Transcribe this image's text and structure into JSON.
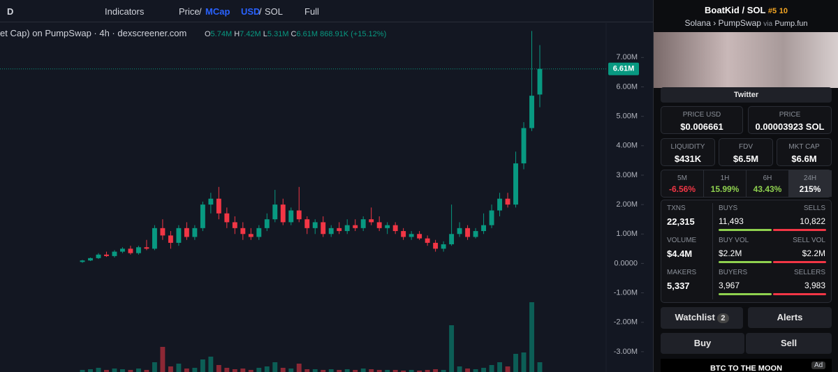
{
  "toolbar": {
    "interval": "D",
    "indicators": "Indicators",
    "price": "Price",
    "slash": "/",
    "mcap": "MCap",
    "usd": "USD",
    "sol": "SOL",
    "full": "Full"
  },
  "legend": {
    "title": "et Cap) on PumpSwap · 4h · dexscreener.com",
    "o": "O",
    "o_value": "5.74M",
    "h": "H",
    "h_value": "7.42M",
    "l": "L",
    "l_value": "5.31M",
    "c": "C",
    "c_value": "6.61M",
    "change": "868.91K (+15.12%)"
  },
  "chart": {
    "ylim": [
      -3.69,
      8.17
    ],
    "yticks": [
      {
        "value": 7,
        "label": "7.00M"
      },
      {
        "value": 6,
        "label": "6.00M"
      },
      {
        "value": 5,
        "label": "5.00M"
      },
      {
        "value": 4,
        "label": "4.00M"
      },
      {
        "value": 3,
        "label": "3.00M"
      },
      {
        "value": 2,
        "label": "2.00M"
      },
      {
        "value": 1,
        "label": "1.00M"
      },
      {
        "value": 0,
        "label": "0.0000"
      },
      {
        "value": -1,
        "label": "-1.00M"
      },
      {
        "value": -2,
        "label": "-2.00M"
      },
      {
        "value": -3,
        "label": "-3.00M"
      }
    ],
    "last_price": {
      "value": 6.61,
      "label": "6.61M"
    },
    "up_color": "#089981",
    "down_color": "#f23645",
    "candles": [
      [
        0.05,
        0.12,
        0.02,
        0.1
      ],
      [
        0.1,
        0.2,
        0.08,
        0.18
      ],
      [
        0.18,
        0.35,
        0.15,
        0.3
      ],
      [
        0.3,
        0.4,
        0.22,
        0.25
      ],
      [
        0.25,
        0.45,
        0.2,
        0.4
      ],
      [
        0.4,
        0.55,
        0.35,
        0.5
      ],
      [
        0.5,
        0.6,
        0.3,
        0.35
      ],
      [
        0.35,
        0.6,
        0.3,
        0.55
      ],
      [
        0.55,
        0.8,
        0.45,
        0.5
      ],
      [
        0.5,
        1.3,
        0.45,
        1.2
      ],
      [
        1.2,
        1.5,
        0.8,
        0.95
      ],
      [
        0.95,
        1.1,
        0.5,
        0.7
      ],
      [
        0.7,
        1.3,
        0.6,
        1.2
      ],
      [
        1.2,
        1.4,
        0.8,
        0.9
      ],
      [
        0.9,
        1.3,
        0.8,
        1.2
      ],
      [
        1.2,
        2.1,
        1.1,
        2.0
      ],
      [
        2.0,
        2.4,
        1.7,
        2.2
      ],
      [
        2.2,
        2.6,
        1.5,
        1.7
      ],
      [
        1.7,
        1.9,
        1.2,
        1.4
      ],
      [
        1.4,
        1.6,
        1.0,
        1.2
      ],
      [
        1.2,
        1.4,
        0.8,
        1.0
      ],
      [
        1.0,
        1.2,
        0.8,
        0.9
      ],
      [
        0.9,
        1.3,
        0.8,
        1.2
      ],
      [
        1.2,
        1.7,
        1.1,
        1.5
      ],
      [
        1.5,
        2.5,
        1.4,
        2.0
      ],
      [
        2.0,
        2.2,
        1.3,
        1.4
      ],
      [
        1.4,
        1.9,
        1.3,
        1.8
      ],
      [
        1.8,
        2.6,
        1.4,
        1.5
      ],
      [
        1.5,
        1.6,
        1.0,
        1.2
      ],
      [
        1.2,
        1.5,
        1.0,
        1.4
      ],
      [
        1.4,
        1.6,
        0.9,
        1.0
      ],
      [
        1.0,
        1.3,
        0.9,
        1.2
      ],
      [
        1.2,
        1.4,
        1.0,
        1.1
      ],
      [
        1.1,
        1.5,
        1.0,
        1.3
      ],
      [
        1.3,
        1.5,
        1.1,
        1.2
      ],
      [
        1.2,
        1.6,
        1.1,
        1.5
      ],
      [
        1.5,
        1.9,
        1.3,
        1.4
      ],
      [
        1.4,
        1.6,
        1.1,
        1.2
      ],
      [
        1.2,
        1.4,
        1.0,
        1.3
      ],
      [
        1.3,
        1.4,
        1.0,
        1.1
      ],
      [
        1.1,
        1.2,
        0.8,
        0.9
      ],
      [
        0.9,
        1.1,
        0.8,
        1.0
      ],
      [
        1.0,
        1.1,
        0.8,
        0.85
      ],
      [
        0.85,
        0.95,
        0.6,
        0.7
      ],
      [
        0.7,
        0.8,
        0.4,
        0.5
      ],
      [
        0.5,
        0.75,
        0.4,
        0.65
      ],
      [
        0.65,
        2.0,
        0.6,
        1.0
      ],
      [
        1.0,
        1.4,
        0.9,
        1.2
      ],
      [
        1.2,
        1.3,
        0.8,
        0.9
      ],
      [
        0.9,
        1.2,
        0.85,
        1.1
      ],
      [
        1.1,
        1.7,
        1.0,
        1.3
      ],
      [
        1.3,
        2.0,
        1.2,
        1.8
      ],
      [
        1.8,
        2.4,
        1.6,
        2.2
      ],
      [
        2.2,
        2.4,
        1.9,
        2.0
      ],
      [
        2.0,
        3.8,
        1.9,
        3.4
      ],
      [
        3.4,
        4.8,
        3.2,
        4.6
      ],
      [
        4.6,
        7.9,
        4.5,
        5.7
      ],
      [
        5.74,
        7.42,
        5.31,
        6.61
      ]
    ],
    "volumes": [
      3,
      4,
      6,
      3,
      5,
      4,
      3,
      5,
      3,
      14,
      36,
      8,
      12,
      5,
      6,
      18,
      22,
      10,
      6,
      4,
      5,
      3,
      6,
      8,
      14,
      6,
      5,
      12,
      4,
      4,
      3,
      4,
      3,
      4,
      3,
      5,
      4,
      3,
      3,
      3,
      2,
      3,
      2,
      3,
      4,
      3,
      67,
      8,
      5,
      4,
      6,
      10,
      14,
      8,
      26,
      28,
      100,
      14
    ]
  },
  "panel": {
    "base": "BoatKid",
    "slash": "/",
    "quote": "SOL",
    "rank": "#5",
    "boosts": "10",
    "chain": "Solana",
    "dex": "PumpSwap",
    "via": "via",
    "launchpad": "Pump.fun",
    "twitter": "Twitter",
    "price_usd": {
      "label": "PRICE USD",
      "value": "$0.006661"
    },
    "price": {
      "label": "PRICE",
      "value": "0.00003923 SOL"
    },
    "liquidity": {
      "label": "LIQUIDITY",
      "value": "$431K"
    },
    "fdv": {
      "label": "FDV",
      "value": "$6.5M"
    },
    "mcap": {
      "label": "MKT CAP",
      "value": "$6.6M"
    },
    "tabs": [
      {
        "label": "5M",
        "value": "-6.56%"
      },
      {
        "label": "1H",
        "value": "15.99%"
      },
      {
        "label": "6H",
        "value": "43.43%"
      },
      {
        "label": "24H",
        "value": "215%"
      }
    ],
    "rows": [
      {
        "label": "TXNS",
        "value": "22,315",
        "left_label": "BUYS",
        "left_value": "11,493",
        "right_label": "SELLS",
        "right_value": "10,822"
      },
      {
        "label": "VOLUME",
        "value": "$4.4M",
        "left_label": "BUY VOL",
        "left_value": "$2.2M",
        "right_label": "SELL VOL",
        "right_value": "$2.2M"
      },
      {
        "label": "MAKERS",
        "value": "5,337",
        "left_label": "BUYERS",
        "left_value": "3,967",
        "right_label": "SELLERS",
        "right_value": "3,983"
      }
    ],
    "watchlist": "Watchlist",
    "watch_count": "2",
    "alerts": "Alerts",
    "buy": "Buy",
    "sell": "Sell",
    "ad": "BTC TO THE MOON",
    "ad_tag": "Ad"
  }
}
